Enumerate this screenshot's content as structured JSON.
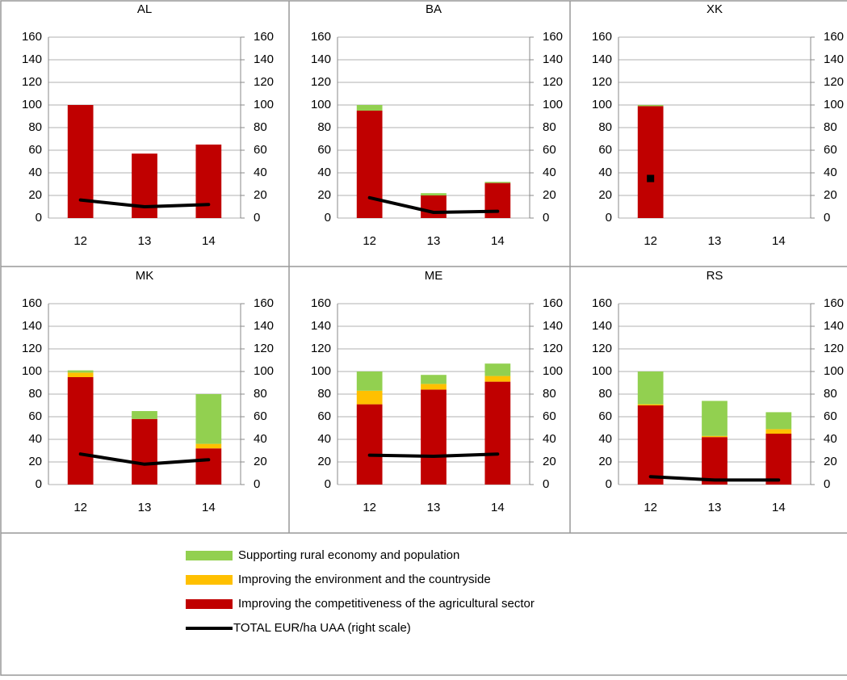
{
  "chart_data": [
    {
      "type": "bar",
      "title": "AL",
      "categories": [
        "12",
        "13",
        "14"
      ],
      "series": [
        {
          "name": "Improving the competitiveness of the agricultural sector",
          "color": "#c00000",
          "values": [
            100,
            57,
            65
          ]
        },
        {
          "name": "Improving the environment and the countryside",
          "color": "#ffc000",
          "values": [
            0,
            0,
            0
          ]
        },
        {
          "name": "Supporting rural economy and population",
          "color": "#92d050",
          "values": [
            0,
            0,
            0
          ]
        },
        {
          "name": "TOTAL EUR/ha UAA (right scale)",
          "color": "#000000",
          "type": "line",
          "axis": "y2",
          "values": [
            16,
            10,
            12
          ]
        }
      ],
      "ylim": [
        0,
        160
      ],
      "yticks": [
        0,
        20,
        40,
        60,
        80,
        100,
        120,
        140,
        160
      ],
      "y2lim": [
        0,
        160
      ],
      "y2ticks": [
        0,
        20,
        40,
        60,
        80,
        100,
        120,
        140,
        160
      ],
      "grid": true
    },
    {
      "type": "bar",
      "title": "BA",
      "categories": [
        "12",
        "13",
        "14"
      ],
      "series": [
        {
          "name": "Improving the competitiveness of the agricultural sector",
          "color": "#c00000",
          "values": [
            95,
            20,
            31
          ]
        },
        {
          "name": "Improving the environment and the countryside",
          "color": "#ffc000",
          "values": [
            0,
            0,
            0
          ]
        },
        {
          "name": "Supporting rural economy and population",
          "color": "#92d050",
          "values": [
            5,
            2,
            1
          ]
        },
        {
          "name": "TOTAL EUR/ha UAA (right scale)",
          "color": "#000000",
          "type": "line",
          "axis": "y2",
          "values": [
            18,
            5,
            6
          ]
        }
      ],
      "ylim": [
        0,
        160
      ],
      "yticks": [
        0,
        20,
        40,
        60,
        80,
        100,
        120,
        140,
        160
      ],
      "y2lim": [
        0,
        160
      ],
      "y2ticks": [
        0,
        20,
        40,
        60,
        80,
        100,
        120,
        140,
        160
      ],
      "grid": true
    },
    {
      "type": "bar",
      "title": "XK",
      "categories": [
        "12",
        "13",
        "14"
      ],
      "series": [
        {
          "name": "Improving the competitiveness of the agricultural sector",
          "color": "#c00000",
          "values": [
            99,
            null,
            null
          ]
        },
        {
          "name": "Improving the environment and the countryside",
          "color": "#ffc000",
          "values": [
            0,
            null,
            null
          ]
        },
        {
          "name": "Supporting rural economy and population",
          "color": "#92d050",
          "values": [
            1,
            null,
            null
          ]
        },
        {
          "name": "TOTAL EUR/ha UAA (right scale)",
          "color": "#000000",
          "type": "line",
          "axis": "y2",
          "values": [
            35,
            null,
            null
          ]
        }
      ],
      "ylim": [
        0,
        160
      ],
      "yticks": [
        0,
        20,
        40,
        60,
        80,
        100,
        120,
        140,
        160
      ],
      "y2lim": [
        0,
        160
      ],
      "y2ticks": [
        0,
        20,
        40,
        60,
        80,
        100,
        120,
        140,
        160
      ],
      "grid": true
    },
    {
      "type": "bar",
      "title": "MK",
      "categories": [
        "12",
        "13",
        "14"
      ],
      "series": [
        {
          "name": "Improving the competitiveness of the agricultural sector",
          "color": "#c00000",
          "values": [
            95,
            58,
            32
          ]
        },
        {
          "name": "Improving the environment and the countryside",
          "color": "#ffc000",
          "values": [
            4,
            0,
            4
          ]
        },
        {
          "name": "Supporting rural economy and population",
          "color": "#92d050",
          "values": [
            2,
            7,
            44
          ]
        },
        {
          "name": "TOTAL EUR/ha UAA (right scale)",
          "color": "#000000",
          "type": "line",
          "axis": "y2",
          "values": [
            27,
            18,
            22
          ]
        }
      ],
      "ylim": [
        0,
        160
      ],
      "yticks": [
        0,
        20,
        40,
        60,
        80,
        100,
        120,
        140,
        160
      ],
      "y2lim": [
        0,
        160
      ],
      "y2ticks": [
        0,
        20,
        40,
        60,
        80,
        100,
        120,
        140,
        160
      ],
      "grid": true
    },
    {
      "type": "bar",
      "title": "ME",
      "categories": [
        "12",
        "13",
        "14"
      ],
      "series": [
        {
          "name": "Improving the competitiveness of the agricultural sector",
          "color": "#c00000",
          "values": [
            71,
            84,
            91
          ]
        },
        {
          "name": "Improving the environment and the countryside",
          "color": "#ffc000",
          "values": [
            12,
            5,
            5
          ]
        },
        {
          "name": "Supporting rural economy and population",
          "color": "#92d050",
          "values": [
            17,
            8,
            11
          ]
        },
        {
          "name": "TOTAL EUR/ha UAA (right scale)",
          "color": "#000000",
          "type": "line",
          "axis": "y2",
          "values": [
            26,
            25,
            27
          ]
        }
      ],
      "ylim": [
        0,
        160
      ],
      "yticks": [
        0,
        20,
        40,
        60,
        80,
        100,
        120,
        140,
        160
      ],
      "y2lim": [
        0,
        160
      ],
      "y2ticks": [
        0,
        20,
        40,
        60,
        80,
        100,
        120,
        140,
        160
      ],
      "grid": true
    },
    {
      "type": "bar",
      "title": "RS",
      "categories": [
        "12",
        "13",
        "14"
      ],
      "series": [
        {
          "name": "Improving the competitiveness of the agricultural sector",
          "color": "#c00000",
          "values": [
            70,
            42,
            45
          ]
        },
        {
          "name": "Improving the environment and the countryside",
          "color": "#ffc000",
          "values": [
            1,
            1,
            4
          ]
        },
        {
          "name": "Supporting rural economy and population",
          "color": "#92d050",
          "values": [
            29,
            31,
            15
          ]
        },
        {
          "name": "TOTAL EUR/ha UAA (right scale)",
          "color": "#000000",
          "type": "line",
          "axis": "y2",
          "values": [
            7,
            4,
            4
          ]
        }
      ],
      "ylim": [
        0,
        160
      ],
      "yticks": [
        0,
        20,
        40,
        60,
        80,
        100,
        120,
        140,
        160
      ],
      "y2lim": [
        0,
        160
      ],
      "y2ticks": [
        0,
        20,
        40,
        60,
        80,
        100,
        120,
        140,
        160
      ],
      "grid": true
    }
  ]
}
